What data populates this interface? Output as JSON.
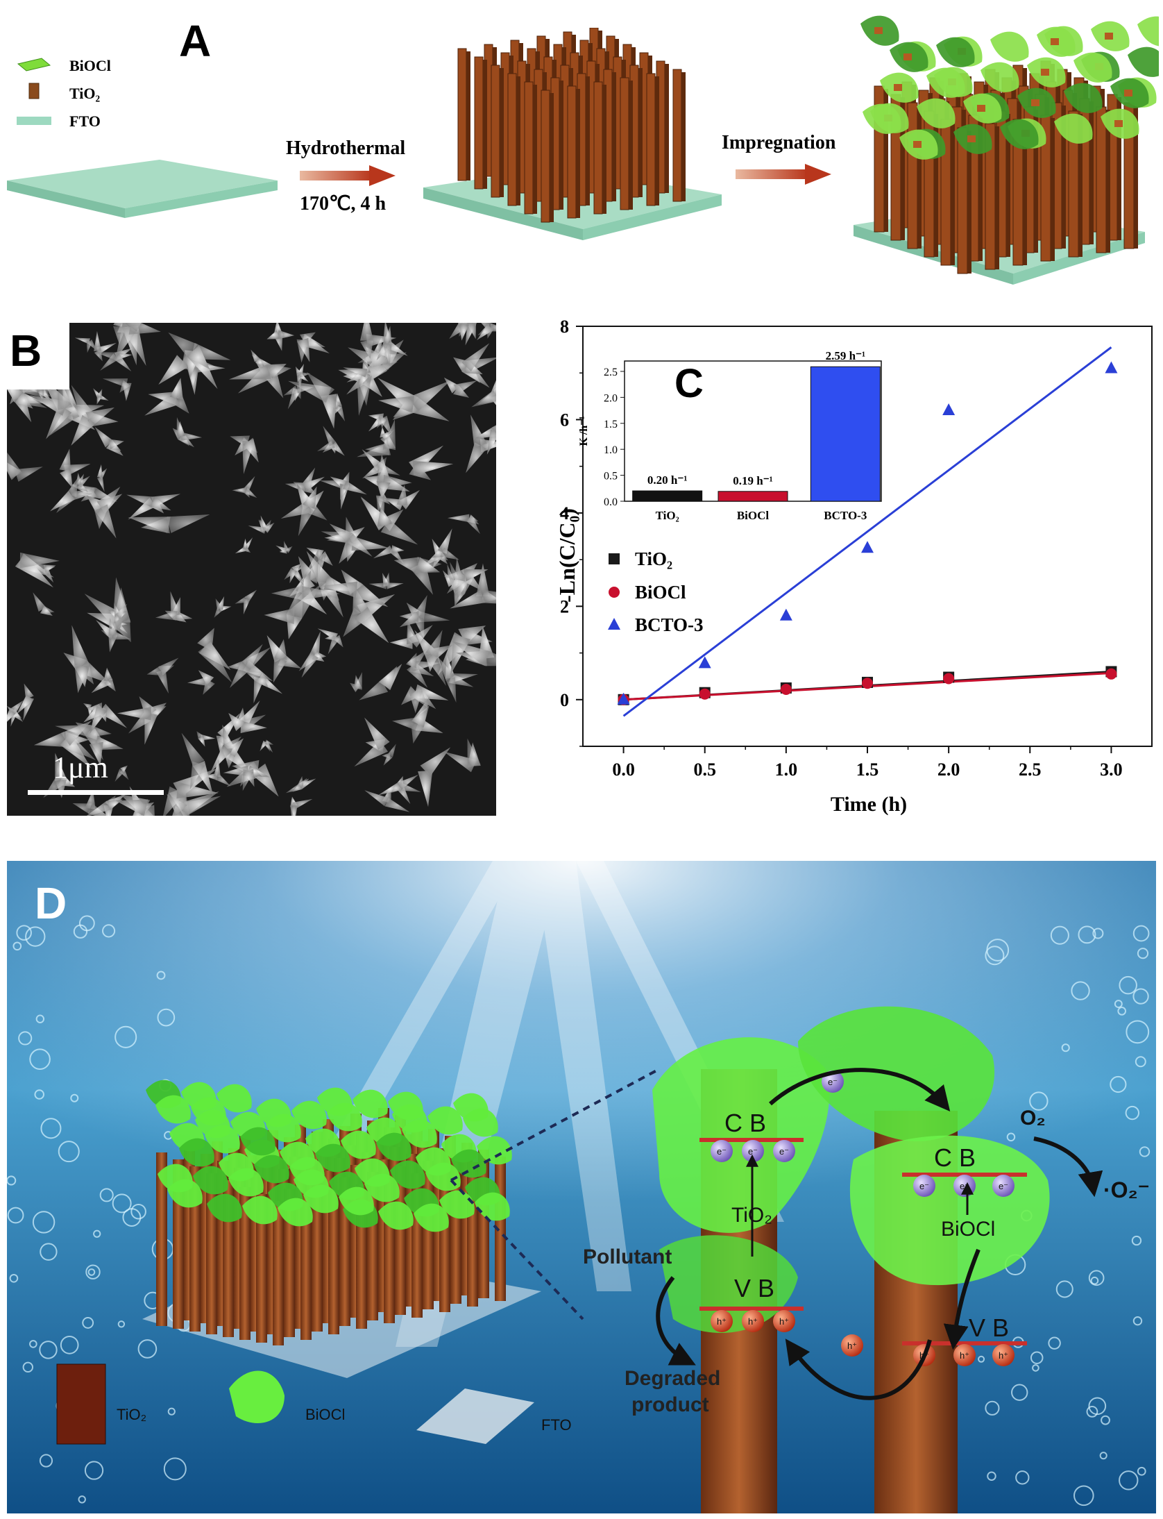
{
  "panel_a": {
    "letter": "A",
    "legend": [
      "BiOCl",
      "TiO₂",
      "FTO"
    ],
    "step1_label": "Hydrothermal",
    "step1_condition": "170℃, 4 h",
    "step2_label": "Impregnation"
  },
  "panel_b": {
    "letter": "B",
    "scale_bar": "1μm"
  },
  "panel_c": {
    "letter": "C"
  },
  "chart_data": [
    {
      "type": "scatter",
      "title": "",
      "xlabel": "Time (h)",
      "ylabel": "-Ln(C/C₀)",
      "xlim": [
        -0.25,
        3.25
      ],
      "ylim": [
        -1,
        8
      ],
      "xticks": [
        "0.0",
        "0.5",
        "1.0",
        "1.5",
        "2.0",
        "2.5",
        "3.0"
      ],
      "yticks": [
        "0",
        "2",
        "4",
        "6",
        "8"
      ],
      "legend_position": "center-left",
      "series": [
        {
          "name": "TiO₂",
          "color": "#1a1a1a",
          "marker": "square",
          "x": [
            0,
            0.5,
            1.0,
            1.5,
            2.0,
            3.0
          ],
          "y": [
            0,
            0.15,
            0.25,
            0.37,
            0.48,
            0.6
          ],
          "fit": [
            [
              0,
              0.0
            ],
            [
              3.0,
              0.6
            ]
          ]
        },
        {
          "name": "BiOCl",
          "color": "#c8102e",
          "marker": "circle",
          "x": [
            0,
            0.5,
            1.0,
            1.5,
            2.0,
            3.0
          ],
          "y": [
            0,
            0.12,
            0.22,
            0.35,
            0.45,
            0.55
          ],
          "fit": [
            [
              0,
              0.0
            ],
            [
              3.0,
              0.57
            ]
          ]
        },
        {
          "name": "BCTO-3",
          "color": "#2a3fd6",
          "marker": "triangle",
          "x": [
            0,
            0.5,
            1.0,
            1.5,
            2.0,
            3.0
          ],
          "y": [
            0,
            0.78,
            1.8,
            3.25,
            6.2,
            7.1
          ],
          "fit": [
            [
              0,
              -0.35
            ],
            [
              3.0,
              7.55
            ]
          ]
        }
      ]
    },
    {
      "type": "bar",
      "title": "",
      "ylabel": "K /h⁻¹",
      "ylim": [
        0,
        2.7
      ],
      "yticks": [
        "0.0",
        "0.5",
        "1.0",
        "1.5",
        "2.0",
        "2.5"
      ],
      "categories": [
        "TiO₂",
        "BiOCl",
        "BCTO-3"
      ],
      "values": [
        0.2,
        0.19,
        2.59
      ],
      "labels": [
        "0.20 h⁻¹",
        "0.19 h⁻¹",
        "2.59 h⁻¹"
      ],
      "colors": [
        "#111111",
        "#c8102e",
        "#2f4ef0"
      ]
    }
  ],
  "panel_d": {
    "letter": "D",
    "cb_left": "C B",
    "cb_right": "C B",
    "vb_left": "V B",
    "vb_right": "V B",
    "tio2_center": "TiO₂",
    "biocl_center": "BiOCl",
    "pollutant": "Pollutant",
    "degraded": [
      "Degraded",
      "product"
    ],
    "o2": "O₂",
    "o2_radical": "·O₂⁻",
    "electron": "e⁻",
    "hole": "h⁺",
    "legend": [
      "TiO₂",
      "BiOCl",
      "FTO"
    ]
  }
}
